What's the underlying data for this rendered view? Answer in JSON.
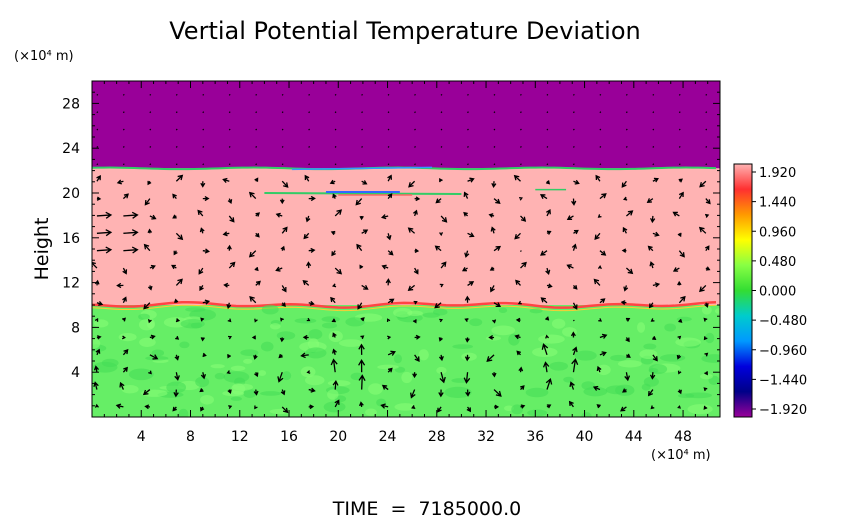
{
  "chart_data": {
    "type": "heatmap",
    "title": "Vertial Potential Temperature Deviation",
    "ylabel": "Height",
    "y_unit": "(×10⁴ m)",
    "x_unit": "(×10⁴ m)",
    "footer": "TIME  =  7185000.0",
    "xlim": [
      0,
      51
    ],
    "ylim": [
      0,
      30
    ],
    "x_ticks": [
      4,
      8,
      12,
      16,
      20,
      24,
      28,
      32,
      36,
      40,
      44,
      48
    ],
    "x_tick_labels": [
      "4",
      "8",
      "12",
      "16",
      "20",
      "24",
      "28",
      "32",
      "36",
      "40",
      "44",
      "48"
    ],
    "y_ticks": [
      4,
      8,
      12,
      16,
      20,
      24,
      28
    ],
    "y_tick_labels": [
      "4",
      "8",
      "12",
      "16",
      "20",
      "24",
      "28"
    ],
    "layers": [
      {
        "y_from": 22.2,
        "y_to": 30,
        "value": -1.92,
        "color": "#990099"
      },
      {
        "y_from": 10.0,
        "y_to": 22.2,
        "value": 1.92,
        "color": "#ffb3b3"
      },
      {
        "y_from": 0,
        "y_to": 10.0,
        "value": 0.3,
        "color": "#66ee66"
      }
    ],
    "colorbar": {
      "min": -1.92,
      "max": 1.92,
      "labels": [
        "1.920",
        "1.440",
        "0.960",
        "0.480",
        "0.000",
        "−0.480",
        "−0.960",
        "−1.440",
        "−1.920"
      ],
      "stops": [
        "#ffb3b3",
        "#ff3030",
        "#ff9900",
        "#ffff00",
        "#88ff44",
        "#33dd33",
        "#00cccc",
        "#0099ff",
        "#0000dd",
        "#000088",
        "#990099"
      ]
    },
    "vortices": [
      {
        "x": 4,
        "y": 3.5,
        "rotation": "ccw"
      },
      {
        "x": 18,
        "y": 3.5,
        "rotation": "cw"
      },
      {
        "x": 24.5,
        "y": 3.5,
        "rotation": "ccw"
      },
      {
        "x": 34,
        "y": 4,
        "rotation": "cw"
      },
      {
        "x": 42,
        "y": 4,
        "rotation": "ccw"
      }
    ]
  }
}
